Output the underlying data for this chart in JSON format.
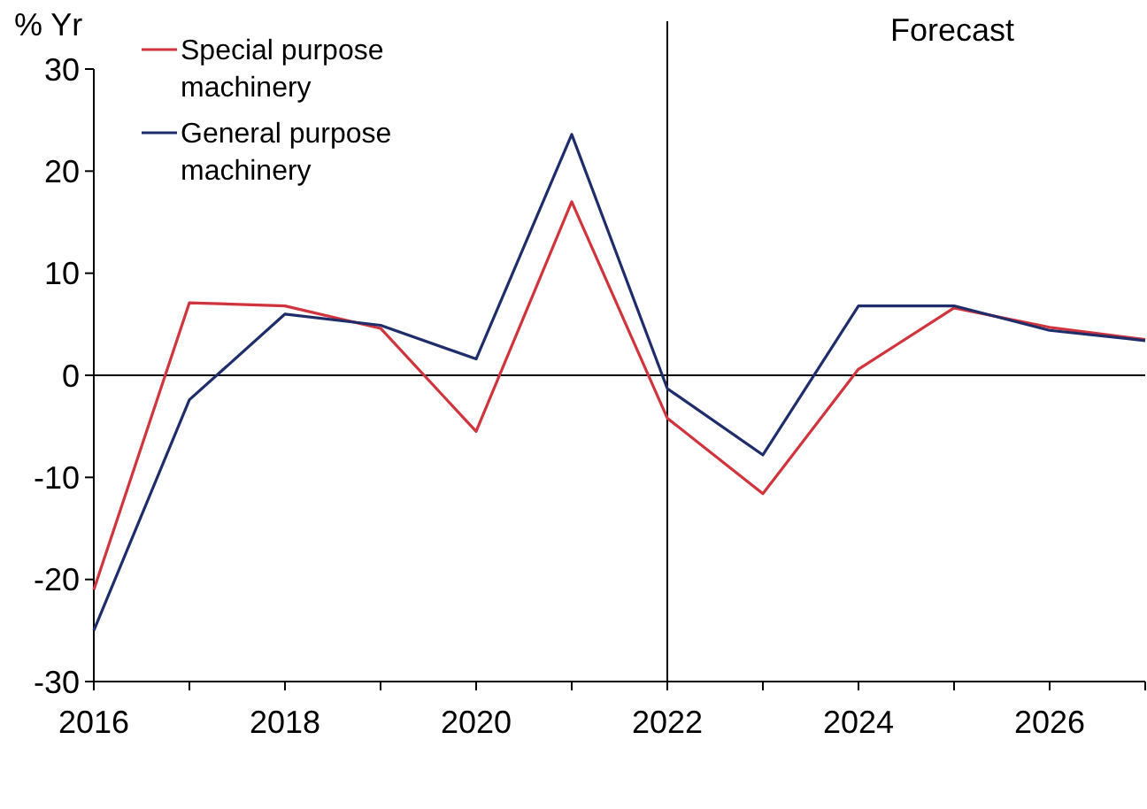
{
  "chart_data": {
    "type": "line",
    "ylabel": "% Yr",
    "x": [
      2016,
      2017,
      2018,
      2019,
      2020,
      2021,
      2022,
      2023,
      2024,
      2025,
      2026,
      2027
    ],
    "series": [
      {
        "name": "Special purpose machinery",
        "color": "#d0343c",
        "values": [
          -21,
          7.1,
          6.8,
          4.6,
          -5.5,
          17,
          -4.2,
          -11.6,
          0.6,
          6.6,
          4.7,
          3.5
        ]
      },
      {
        "name": "General purpose machinery",
        "color": "#1f2d6b",
        "values": [
          -25,
          -2.4,
          6,
          4.9,
          1.6,
          23.6,
          -1.3,
          -7.8,
          6.8,
          6.8,
          4.4,
          3.4
        ]
      }
    ],
    "xlim": [
      2016,
      2027
    ],
    "xticks": [
      2016,
      {
        "value": 2017,
        "label": null
      },
      2018,
      {
        "value": 2019,
        "label": null
      },
      2020,
      {
        "value": 2021,
        "label": null
      },
      2022,
      {
        "value": 2023,
        "label": null
      },
      2024,
      {
        "value": 2025,
        "label": null
      },
      2026,
      {
        "value": 2027,
        "label": null
      }
    ],
    "ylim": [
      -30,
      30
    ],
    "yticks": [
      -30,
      -20,
      -10,
      0,
      10,
      20,
      30
    ],
    "ref_lines": [
      {
        "axis": "y",
        "value": 0,
        "color": "#000000"
      },
      {
        "axis": "x",
        "value": 2022,
        "color": "#000000"
      }
    ],
    "annotations": [
      "Forecast"
    ],
    "legend": "top left",
    "grid": false,
    "marker": "none",
    "line_style": "solid"
  }
}
